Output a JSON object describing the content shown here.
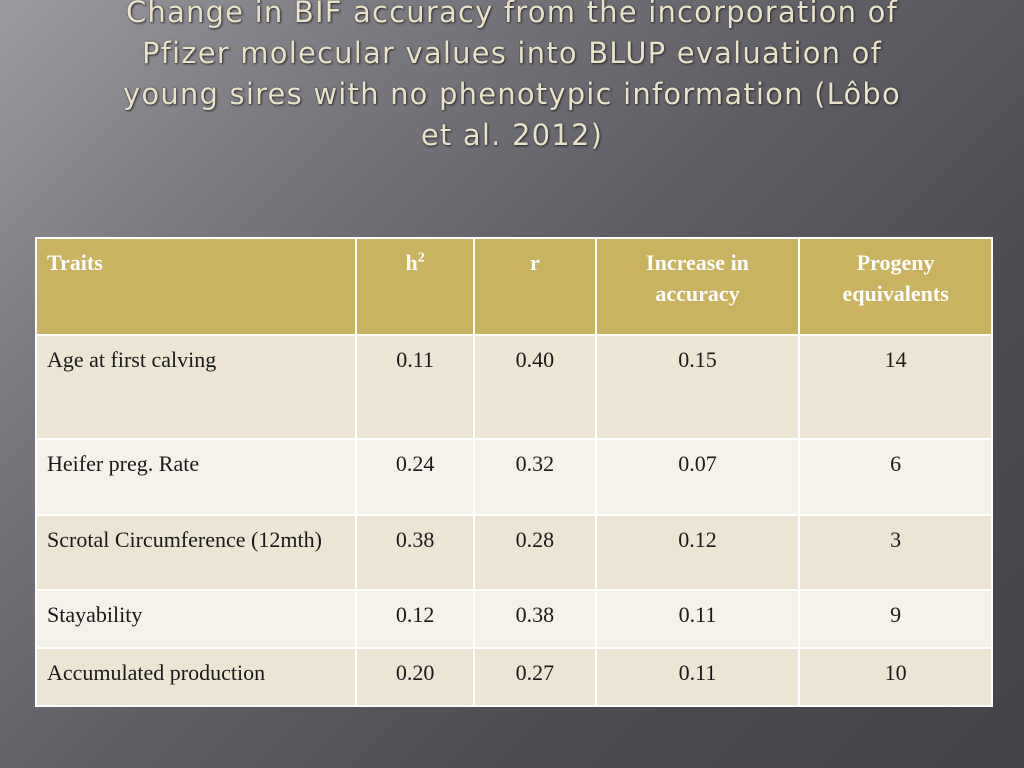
{
  "slide": {
    "title_lines": [
      "Change in BIF accuracy from the incorporation of",
      "Pfizer molecular values  into BLUP evaluation of",
      "young sires with no phenotypic information (Lôbo",
      "et al. 2012)"
    ]
  },
  "table": {
    "headers": {
      "traits": "Traits",
      "h": "h",
      "h_sup": "2",
      "r": "r",
      "increase": "Increase in accuracy",
      "progeny": "Progeny equivalents"
    },
    "rows": [
      {
        "trait": "Age at first calving",
        "h2": "0.11",
        "r": "0.40",
        "increase": "0.15",
        "progeny": "14"
      },
      {
        "trait": "Heifer preg. Rate",
        "h2": "0.24",
        "r": "0.32",
        "increase": "0.07",
        "progeny": "6"
      },
      {
        "trait": "Scrotal Circumference (12mth)",
        "h2": "0.38",
        "r": "0.28",
        "increase": "0.12",
        "progeny": "3"
      },
      {
        "trait": "Stayability",
        "h2": "0.12",
        "r": "0.38",
        "increase": "0.11",
        "progeny": "9"
      },
      {
        "trait": "Accumulated production",
        "h2": "0.20",
        "r": "0.27",
        "increase": "0.11",
        "progeny": "10"
      }
    ]
  },
  "colors": {
    "header_bg": "#c9b360",
    "row_odd_bg": "#ece5d4",
    "row_even_bg": "#f5f2ea",
    "title_text": "#e9e2c9"
  }
}
